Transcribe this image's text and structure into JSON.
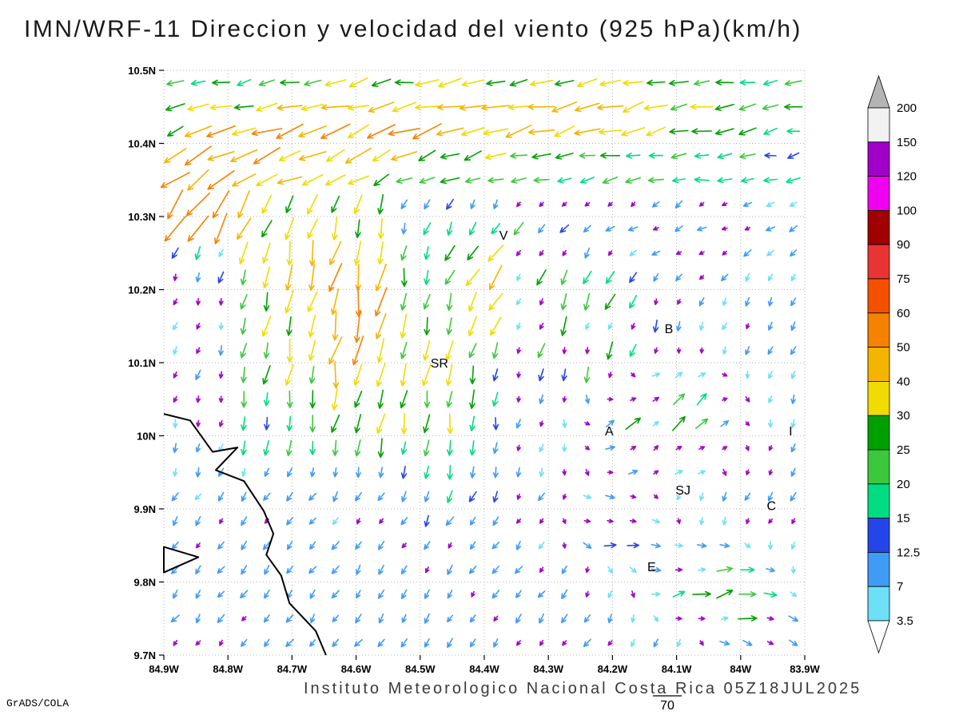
{
  "title": "IMN/WRF-11 Direccion y velocidad del viento (925 hPa)(km/h)",
  "footer": {
    "credit": "Instituto Meteorologico Nacional Costa Rica 05Z18JUL2025",
    "logo": "GrADS/COLA",
    "page_number": "70"
  },
  "chart_data": {
    "type": "vector_field",
    "title": "IMN/WRF-11 Direccion y velocidad del viento (925 hPa)(km/h)",
    "xlim": [
      -84.9,
      -83.9
    ],
    "ylim": [
      9.7,
      10.5
    ],
    "grid": "dotted",
    "x_ticks": {
      "values": [
        -84.9,
        -84.8,
        -84.7,
        -84.6,
        -84.5,
        -84.4,
        -84.3,
        -84.2,
        -84.1,
        -84.0,
        -83.9
      ],
      "labels": [
        "84.9W",
        "84.8W",
        "84.7W",
        "84.6W",
        "84.5W",
        "84.4W",
        "84.3W",
        "84.2W",
        "84.1W",
        "84W",
        "83.9W"
      ]
    },
    "y_ticks": {
      "values": [
        10.5,
        10.4,
        10.3,
        10.2,
        10.1,
        10.0,
        9.9,
        9.8,
        9.7
      ],
      "labels": [
        "10.5N",
        "10.4N",
        "10.3N",
        "10.2N",
        "10.1N",
        "10N",
        "9.9N",
        "9.8N",
        "9.7N"
      ]
    },
    "colorbar": {
      "levels": [
        3.5,
        7,
        12.5,
        15,
        20,
        25,
        30,
        40,
        50,
        60,
        75,
        90,
        100,
        120,
        150,
        200
      ],
      "labels": [
        "3.5",
        "7",
        "12.5",
        "15",
        "20",
        "25",
        "30",
        "40",
        "50",
        "60",
        "75",
        "90",
        "100",
        "120",
        "150",
        "200"
      ],
      "colors": [
        "#6ee0f5",
        "#3f9bf5",
        "#2446e8",
        "#00dc82",
        "#3cc83c",
        "#00a000",
        "#f0dc00",
        "#f5b400",
        "#f58200",
        "#f55000",
        "#e83434",
        "#a00000",
        "#f000f0",
        "#a000c8",
        "#f2f2f2"
      ],
      "over_color": "#b4b4b4",
      "under_color": "#ffffff"
    },
    "calm_arrow_color": "#a000c8",
    "stations": [
      {
        "label": "V",
        "lon": -84.37,
        "lat": 10.274
      },
      {
        "label": "B",
        "lon": -84.112,
        "lat": 10.146
      },
      {
        "label": "SR",
        "lon": -84.47,
        "lat": 10.099
      },
      {
        "label": "A",
        "lon": -84.205,
        "lat": 10.006
      },
      {
        "label": "SJ",
        "lon": -84.09,
        "lat": 9.925
      },
      {
        "label": "C",
        "lon": -83.952,
        "lat": 9.904
      },
      {
        "label": "E",
        "lon": -84.139,
        "lat": 9.82
      },
      {
        "label": "I",
        "lon": -83.922,
        "lat": 10.006
      }
    ],
    "coastline": [
      [
        -84.9,
        10.03
      ],
      [
        -84.859,
        10.021
      ],
      [
        -84.824,
        9.978
      ],
      [
        -84.785,
        9.984
      ],
      [
        -84.819,
        9.953
      ],
      [
        -84.775,
        9.938
      ],
      [
        -84.744,
        9.897
      ],
      [
        -84.729,
        9.866
      ],
      [
        -84.74,
        9.837
      ],
      [
        -84.717,
        9.809
      ],
      [
        -84.704,
        9.771
      ],
      [
        -84.663,
        9.733
      ],
      [
        -84.647,
        9.7
      ]
    ],
    "peninsula": [
      [
        -84.9,
        9.848
      ],
      [
        -84.846,
        9.834
      ],
      [
        -84.9,
        9.813
      ]
    ],
    "grid_points": {
      "cols": 28,
      "rows": 24
    },
    "base_flow": {
      "north": {
        "lat_min": 10.33,
        "dir": 192,
        "spd": 14
      },
      "west": {
        "lon_max": -84.55,
        "lat_min": 9.95,
        "dir": 255,
        "spd": 16
      },
      "south": {
        "lat_max": 9.95,
        "dir": 235,
        "spd": 9
      },
      "interior": {
        "dir": 250,
        "spd": 7
      }
    },
    "flow_features": [
      {
        "lon": -84.4,
        "lat": 10.47,
        "rx": 0.55,
        "ry": 0.07,
        "dir": 190,
        "spd": 12
      },
      {
        "lon": -84.3,
        "lat": 10.43,
        "rx": 0.3,
        "ry": 0.05,
        "dir": 198,
        "spd": 14
      },
      {
        "lon": -84.65,
        "lat": 10.4,
        "rx": 0.28,
        "ry": 0.06,
        "dir": 207,
        "spd": 24
      },
      {
        "lon": -84.82,
        "lat": 10.36,
        "rx": 0.12,
        "ry": 0.05,
        "dir": 218,
        "spd": 32
      },
      {
        "lon": -84.84,
        "lat": 10.29,
        "rx": 0.09,
        "ry": 0.05,
        "dir": 232,
        "spd": 42
      },
      {
        "lon": -84.62,
        "lat": 10.17,
        "rx": 0.14,
        "ry": 0.12,
        "dir": 262,
        "spd": 30
      },
      {
        "lon": -84.47,
        "lat": 10.04,
        "rx": 0.1,
        "ry": 0.11,
        "dir": 268,
        "spd": 20
      },
      {
        "lon": -84.37,
        "lat": 10.21,
        "rx": 0.09,
        "ry": 0.07,
        "dir": 235,
        "spd": 30
      },
      {
        "lon": -84.22,
        "lat": 10.14,
        "rx": 0.08,
        "ry": 0.07,
        "dir": 252,
        "spd": 28
      },
      {
        "lon": -84.12,
        "lat": 10.02,
        "rx": 0.1,
        "ry": 0.07,
        "dir": 48,
        "spd": 38
      },
      {
        "lon": -84.05,
        "lat": 9.8,
        "rx": 0.1,
        "ry": 0.06,
        "dir": 28,
        "spd": 30
      },
      {
        "lon": -83.97,
        "lat": 9.74,
        "rx": 0.08,
        "ry": 0.05,
        "dir": 8,
        "spd": 20
      },
      {
        "lon": -84.2,
        "lat": 9.88,
        "rx": 0.07,
        "ry": 0.05,
        "dir": 20,
        "spd": 24
      },
      {
        "lon": -84.05,
        "lat": 10.28,
        "rx": 0.25,
        "ry": 0.06,
        "dir": 150,
        "spd": 6
      }
    ],
    "calm_zones": [
      {
        "lon_min": -84.35,
        "lon_max": -83.92,
        "lat_min": 9.88,
        "lat_max": 10.32,
        "prob": 0.45,
        "factor": 0.12
      },
      {
        "lon_max": -84.8,
        "lat_min": 9.97,
        "lat_max": 10.27,
        "prob": 0.5,
        "factor": 0.15,
        "else_factor": 0.5
      },
      {
        "lat_max": 9.9,
        "prob": 0.15,
        "factor": 0.2
      }
    ]
  }
}
